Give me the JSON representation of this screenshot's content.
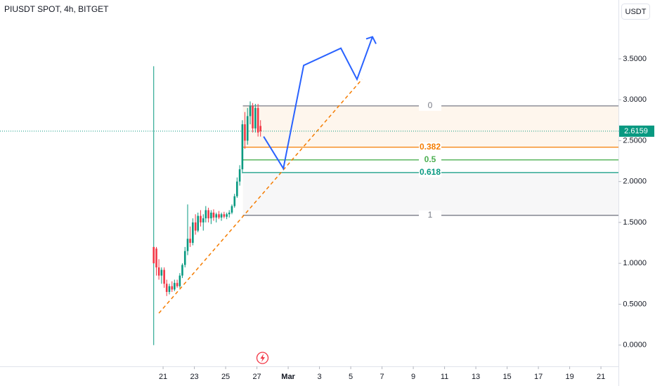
{
  "chart_data": {
    "type": "candlestick",
    "title": "PIUSDT SPOT, 4h, BITGET",
    "currency": "USDT",
    "xlim": [
      -10.43,
      29.12
    ],
    "xticks": [
      {
        "value": 0,
        "label": "21"
      },
      {
        "value": 2,
        "label": "23"
      },
      {
        "value": 4,
        "label": "25"
      },
      {
        "value": 6,
        "label": "27"
      },
      {
        "value": 8,
        "label": "Mar"
      },
      {
        "value": 10,
        "label": "3"
      },
      {
        "value": 12,
        "label": "5"
      },
      {
        "value": 14,
        "label": "7"
      },
      {
        "value": 16,
        "label": "9"
      },
      {
        "value": 18,
        "label": "11"
      },
      {
        "value": 20,
        "label": "13"
      },
      {
        "value": 22,
        "label": "15"
      },
      {
        "value": 24,
        "label": "17"
      },
      {
        "value": 26,
        "label": "19"
      },
      {
        "value": 28,
        "label": "21"
      }
    ],
    "ylim": [
      -0.26,
      4.22
    ],
    "yticks": [
      {
        "value": 0,
        "label": "0.0000"
      },
      {
        "value": 0.5,
        "label": "0.5000"
      },
      {
        "value": 1,
        "label": "1.0000"
      },
      {
        "value": 1.5,
        "label": "1.5000"
      },
      {
        "value": 2,
        "label": "2.0000"
      },
      {
        "value": 2.5,
        "label": "2.5000"
      },
      {
        "value": 3,
        "label": "3.0000"
      },
      {
        "value": 3.5,
        "label": "3.5000"
      }
    ],
    "up_color": "#089981",
    "down_color": "#f23645",
    "candles": {
      "x": [
        -0.6,
        -0.43,
        -0.27,
        -0.1,
        0.07,
        0.23,
        0.4,
        0.57,
        0.73,
        0.9,
        1.07,
        1.23,
        1.4,
        1.57,
        1.73,
        1.9,
        2.07,
        2.23,
        2.4,
        2.57,
        2.73,
        2.9,
        3.07,
        3.23,
        3.4,
        3.57,
        3.73,
        3.9,
        4.07,
        4.23,
        4.4,
        4.57,
        4.73,
        4.9,
        5.07,
        5.23,
        5.4,
        5.57,
        5.73,
        5.9,
        6.07,
        6.23
      ],
      "open": [
        1.2,
        1.18,
        0.95,
        0.85,
        0.92,
        0.75,
        0.65,
        0.72,
        0.68,
        0.76,
        0.72,
        0.85,
        0.98,
        1.15,
        1.3,
        1.25,
        1.5,
        1.4,
        1.58,
        1.5,
        1.55,
        1.65,
        1.55,
        1.62,
        1.56,
        1.6,
        1.56,
        1.6,
        1.57,
        1.6,
        1.62,
        1.7,
        1.82,
        2.0,
        2.15,
        2.7,
        2.5,
        2.8,
        2.92,
        2.65,
        2.9,
        2.68
      ],
      "high": [
        3.41,
        1.2,
        1.05,
        0.95,
        0.95,
        0.8,
        0.75,
        0.78,
        0.8,
        0.8,
        0.88,
        1.0,
        1.2,
        1.72,
        1.45,
        1.55,
        1.6,
        1.62,
        1.65,
        1.6,
        1.7,
        1.68,
        1.65,
        1.66,
        1.62,
        1.64,
        1.62,
        1.63,
        1.62,
        1.65,
        1.72,
        1.85,
        2.05,
        2.2,
        2.75,
        2.85,
        2.9,
        2.98,
        2.96,
        2.95,
        2.95,
        2.75
      ],
      "low": [
        0.0,
        0.85,
        0.8,
        0.75,
        0.7,
        0.6,
        0.62,
        0.65,
        0.66,
        0.7,
        0.7,
        0.82,
        0.95,
        1.1,
        1.2,
        1.22,
        1.35,
        1.38,
        1.45,
        1.4,
        1.5,
        1.5,
        1.48,
        1.52,
        1.5,
        1.54,
        1.52,
        1.55,
        1.54,
        1.56,
        1.6,
        1.68,
        1.8,
        1.95,
        2.1,
        2.4,
        2.45,
        2.7,
        2.6,
        2.6,
        2.55,
        2.55
      ],
      "close": [
        1.0,
        0.95,
        0.85,
        0.92,
        0.75,
        0.65,
        0.72,
        0.68,
        0.76,
        0.72,
        0.85,
        0.98,
        1.15,
        1.3,
        1.25,
        1.5,
        1.4,
        1.58,
        1.5,
        1.55,
        1.65,
        1.55,
        1.62,
        1.56,
        1.6,
        1.56,
        1.6,
        1.57,
        1.6,
        1.62,
        1.7,
        1.82,
        2.0,
        2.15,
        2.7,
        2.5,
        2.8,
        2.92,
        2.65,
        2.9,
        2.6,
        2.6159
      ]
    },
    "last_price": 2.6159,
    "fib_levels": [
      {
        "ratio": 0,
        "price": 2.925,
        "color": "#787b86"
      },
      {
        "ratio": 0.382,
        "price": 2.42,
        "color": "#f57c00"
      },
      {
        "ratio": 0.5,
        "price": 2.265,
        "color": "#4caf50"
      },
      {
        "ratio": 0.618,
        "price": 2.11,
        "color": "#089981"
      },
      {
        "ratio": 1,
        "price": 1.587,
        "color": "#787b86"
      }
    ],
    "fib_start_x": 5.1,
    "projection": {
      "color": "#2962ff",
      "x": [
        6.43,
        7.69,
        8.99,
        11.37,
        12.4,
        13.39
      ],
      "y": [
        2.55,
        2.16,
        3.42,
        3.63,
        3.25,
        3.77
      ]
    },
    "trendline": {
      "color": "#f57c00",
      "x": [
        -0.27,
        12.72
      ],
      "y": [
        0.39,
        3.25
      ]
    }
  }
}
